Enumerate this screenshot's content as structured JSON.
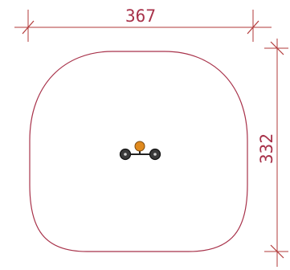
{
  "dimensions": {
    "width_label": "367",
    "height_label": "332"
  },
  "colors": {
    "outline": "#a8324a",
    "dimension": "#b23a3a",
    "fixture_head": "#e08a1e",
    "fixture_node": "#3a3a3a"
  }
}
